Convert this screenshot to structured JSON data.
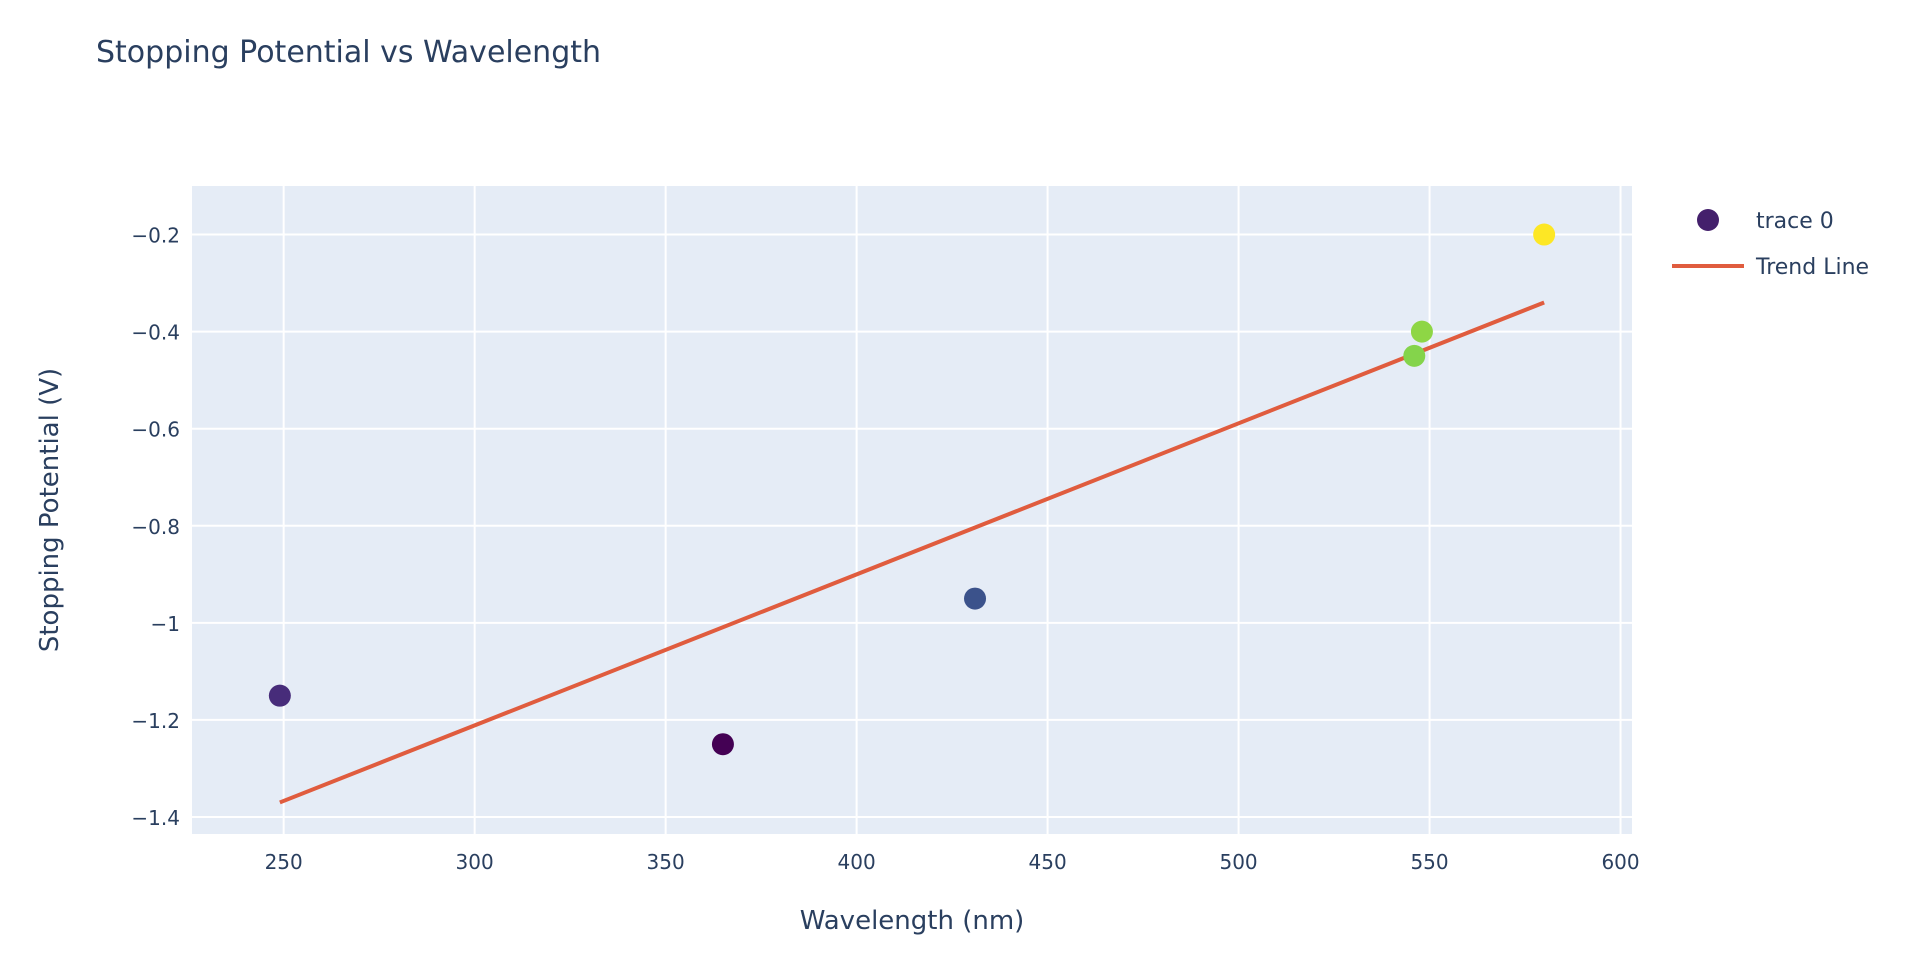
{
  "chart_data": {
    "type": "scatter",
    "title": "Stopping Potential vs Wavelength",
    "xlabel": "Wavelength (nm)",
    "ylabel": "Stopping Potential (V)",
    "xlim": [
      226,
      603
    ],
    "ylim": [
      -1.435,
      -0.1
    ],
    "xticks": [
      250,
      300,
      350,
      400,
      450,
      500,
      550,
      600
    ],
    "xtick_labels": [
      "250",
      "300",
      "350",
      "400",
      "450",
      "500",
      "550",
      "600"
    ],
    "yticks": [
      -1.4,
      -1.2,
      -1,
      -0.8,
      -0.6,
      -0.4,
      -0.2
    ],
    "ytick_labels": [
      "−1.4",
      "−1.2",
      "−1",
      "−0.8",
      "−0.6",
      "−0.4",
      "−0.2"
    ],
    "grid": true,
    "legend_position": "top-right",
    "series": [
      {
        "name": "trace 0",
        "mode": "markers",
        "legend_color": "#44206c",
        "points": [
          {
            "x": 249,
            "y": -1.15,
            "color": "#472c7a"
          },
          {
            "x": 365,
            "y": -1.25,
            "color": "#440154"
          },
          {
            "x": 431,
            "y": -0.95,
            "color": "#3b528b"
          },
          {
            "x": 546,
            "y": -0.45,
            "color": "#84d44b"
          },
          {
            "x": 548,
            "y": -0.4,
            "color": "#8ed645"
          },
          {
            "x": 580,
            "y": -0.2,
            "color": "#fde725"
          }
        ]
      },
      {
        "name": "Trend Line",
        "mode": "line",
        "color": "#e05c3e",
        "points": [
          {
            "x": 249,
            "y": -1.37
          },
          {
            "x": 580,
            "y": -0.34
          }
        ]
      }
    ]
  }
}
